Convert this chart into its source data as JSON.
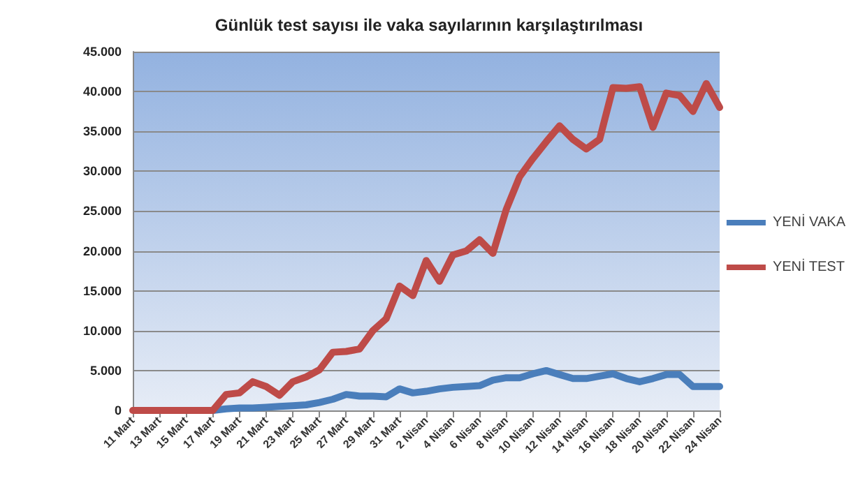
{
  "chart_data": {
    "type": "line",
    "title": "Günlük test sayısı ile vaka sayılarının karşılaştırılması",
    "categories": [
      "11 Mart",
      null,
      "13 Mart",
      null,
      "15 Mart",
      null,
      "17 Mart",
      null,
      "19 Mart",
      null,
      "21 Mart",
      null,
      "23 Mart",
      null,
      "25 Mart",
      null,
      "27 Mart",
      null,
      "29 Mart",
      null,
      "31 Mart",
      null,
      "2 Nisan",
      null,
      "4 Nisan",
      null,
      "6 Nisan",
      null,
      "8 Nisan",
      null,
      "10 Nisan",
      null,
      "12 Nisan",
      null,
      "14 Nisan",
      null,
      "16 Nisan",
      null,
      "18 Nisan",
      null,
      "20 Nisan",
      null,
      "22 Nisan",
      null,
      "24 Nisan"
    ],
    "series": [
      {
        "name": "YENİ VAKA",
        "color": "#4a7ebb",
        "values": [
          null,
          null,
          null,
          null,
          null,
          0,
          0,
          200,
          300,
          300,
          400,
          500,
          600,
          700,
          1000,
          1400,
          2000,
          1800,
          1800,
          1700,
          2700,
          2200,
          2400,
          2700,
          2900,
          3000,
          3100,
          3800,
          4100,
          4100,
          4600,
          5000,
          4500,
          4000,
          4000,
          4300,
          4600,
          4000,
          3600,
          4000,
          4500,
          4500,
          3000,
          3000,
          3000
        ]
      },
      {
        "name": "YENİ TEST",
        "color": "#be4b48",
        "values": [
          0,
          0,
          0,
          0,
          0,
          0,
          0,
          2000,
          2200,
          3600,
          3000,
          1900,
          3600,
          4200,
          5100,
          7300,
          7400,
          7700,
          10000,
          11500,
          15600,
          14400,
          18800,
          16200,
          19500,
          20000,
          21400,
          19700,
          25200,
          29300,
          31600,
          33700,
          35700,
          34000,
          32800,
          34000,
          40500,
          40400,
          40600,
          35500,
          39800,
          39500,
          37500,
          41000,
          38000
        ]
      }
    ],
    "ylim": [
      0,
      45000
    ],
    "yticks": [
      0,
      {
        "value": 5000,
        "label": "5.000"
      },
      {
        "value": 10000,
        "label": "10.000"
      },
      {
        "value": 15000,
        "label": "15.000"
      },
      {
        "value": 20000,
        "label": "20.000"
      },
      {
        "value": 25000,
        "label": "25.000"
      },
      {
        "value": 30000,
        "label": "30.000"
      },
      {
        "value": 35000,
        "label": "35.000"
      },
      {
        "value": 40000,
        "label": "40.000"
      },
      {
        "value": 45000,
        "label": "45.000"
      }
    ],
    "grid": "y",
    "legend": "right",
    "marker": "none",
    "line_style": "solid"
  }
}
